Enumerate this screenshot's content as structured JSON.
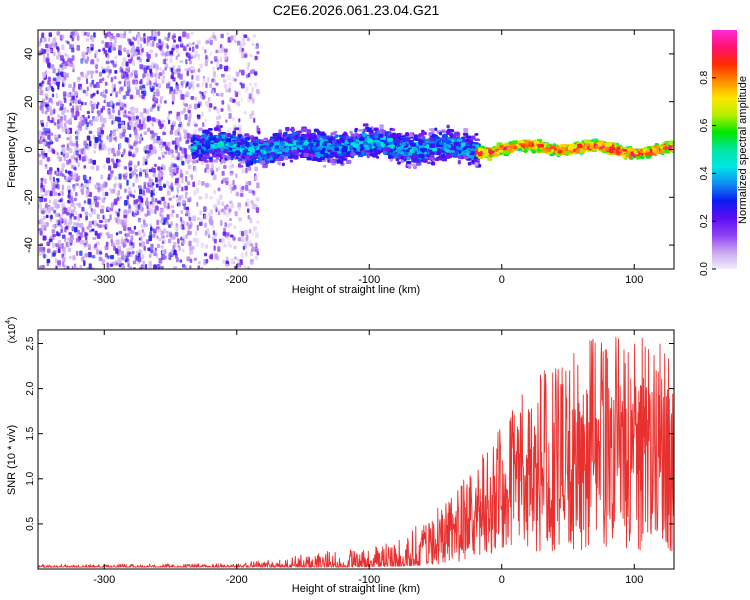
{
  "figure": {
    "title": "C2E6.2026.061.23.04.G21"
  },
  "chart_data": [
    {
      "type": "heatmap",
      "name": "spectrogram",
      "title": "C2E6.2026.061.23.04.G21",
      "xlabel": "Height of straight line (km)",
      "ylabel": "Frequency (Hz)",
      "xlim": [
        -350,
        130
      ],
      "ylim": [
        -50,
        50
      ],
      "x_ticks": [
        -300,
        -200,
        -100,
        0,
        100
      ],
      "y_ticks": [
        -40,
        -20,
        0,
        20,
        40
      ],
      "grid": false,
      "regions": [
        {
          "x_range": [
            -350,
            -235
          ],
          "description": "noise, scattered low-amplitude speckle across all frequencies",
          "amplitude": [
            0.05,
            0.3
          ]
        },
        {
          "x_range": [
            -235,
            -185
          ],
          "description": "noise fading",
          "amplitude": [
            0.02,
            0.25
          ]
        },
        {
          "x_range": [
            -235,
            -20
          ],
          "center_freq_hz": 2,
          "halfwidth_hz": 5,
          "amplitude": [
            0.2,
            0.5
          ]
        },
        {
          "x_range": [
            -20,
            130
          ],
          "center_freq_hz": 1,
          "halfwidth_hz": 2,
          "amplitude": [
            0.5,
            1.0
          ]
        }
      ],
      "colorbar": {
        "label": "Normalized spectral amplitude",
        "range": [
          0,
          1
        ],
        "ticks": [
          "0.0",
          "0.2",
          "0.4",
          "0.6",
          "0.8"
        ],
        "colors": [
          "#f3ecfc",
          "#c9a7f0",
          "#8e3ff2",
          "#5b0cf2",
          "#0a1df2",
          "#0e8ef2",
          "#00e6e6",
          "#00e6a0",
          "#00e600",
          "#b3f000",
          "#ffe600",
          "#ff8c00",
          "#ff2a00",
          "#ff1070",
          "#ff2ad8"
        ]
      }
    },
    {
      "type": "line",
      "name": "snr",
      "xlabel": "Height of straight line (km)",
      "ylabel": "SNR (10 * v/v)",
      "scale_label": "(x10",
      "scale_exponent": "4",
      "xlim": [
        -350,
        130
      ],
      "ylim": [
        0,
        2.65
      ],
      "x_ticks": [
        -300,
        -200,
        -100,
        0,
        100
      ],
      "y_ticks": [
        0.5,
        1.0,
        1.5,
        2.0,
        2.5
      ],
      "color": "#e8312f",
      "grid": false,
      "envelope": [
        {
          "x": -350,
          "min": 0.02,
          "max": 0.05
        },
        {
          "x": -200,
          "min": 0.02,
          "max": 0.06
        },
        {
          "x": -170,
          "min": 0.02,
          "max": 0.12
        },
        {
          "x": -120,
          "min": 0.02,
          "max": 0.22
        },
        {
          "x": -80,
          "min": 0.03,
          "max": 0.3
        },
        {
          "x": -50,
          "min": 0.05,
          "max": 0.65
        },
        {
          "x": -25,
          "min": 0.1,
          "max": 1.05
        },
        {
          "x": 0,
          "min": 0.2,
          "max": 1.6
        },
        {
          "x": 30,
          "min": 0.2,
          "max": 2.25
        },
        {
          "x": 60,
          "min": 0.2,
          "max": 2.55
        },
        {
          "x": 100,
          "min": 0.2,
          "max": 2.6
        },
        {
          "x": 130,
          "min": 0.2,
          "max": 2.45
        }
      ]
    }
  ]
}
